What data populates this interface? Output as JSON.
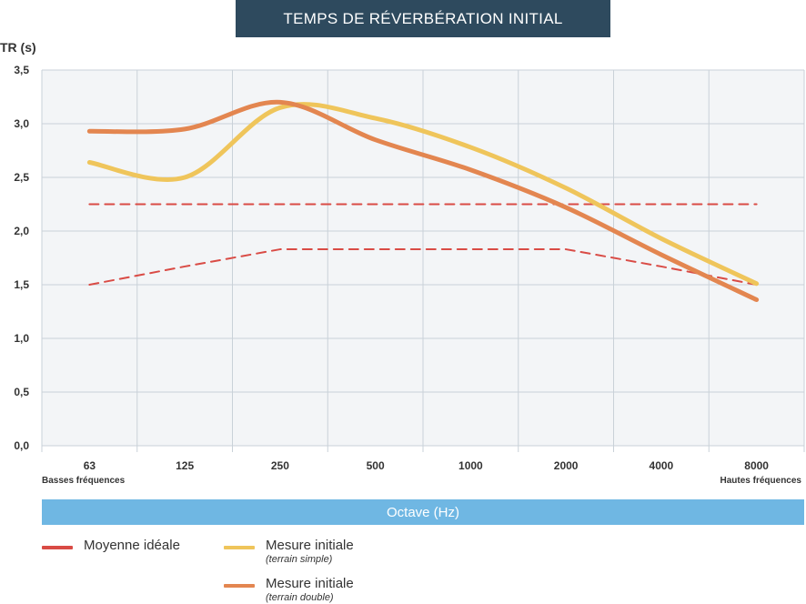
{
  "title": "TEMPS DE RÉVERBÉRATION INITIAL",
  "y_unit": "TR (s)",
  "x_axis_label": "Octave (Hz)",
  "low_note": "Basses fréquences",
  "high_note": "Hautes fréquences",
  "colors": {
    "title_bg": "#2e4a5e",
    "octave_bg": "#6fb7e3",
    "ideal": "#d94b45",
    "simple": "#efc55b",
    "double": "#e38650",
    "plot_bg": "#f3f5f7",
    "grid": "#c9d1d8"
  },
  "legend": {
    "ideal": {
      "label": "Moyenne idéale"
    },
    "simple": {
      "label": "Mesure initiale",
      "sub": "(terrain simple)"
    },
    "double": {
      "label": "Mesure initiale",
      "sub": "(terrain double)"
    }
  },
  "chart_data": {
    "type": "line",
    "categories": [
      "63",
      "125",
      "250",
      "500",
      "1000",
      "2000",
      "4000",
      "8000"
    ],
    "ylim": [
      0,
      3.5
    ],
    "yticks": [
      "0,0",
      "0,5",
      "1,0",
      "1,5",
      "2,0",
      "2,5",
      "3,0",
      "3,5"
    ],
    "grid": true,
    "legend_position": "bottom-left",
    "series": [
      {
        "key": "simple",
        "values": [
          2.64,
          2.5,
          3.15,
          3.05,
          2.78,
          2.4,
          1.93,
          1.51
        ]
      },
      {
        "key": "double",
        "values": [
          2.93,
          2.95,
          3.2,
          2.85,
          2.57,
          2.22,
          1.78,
          1.36
        ]
      },
      {
        "key": "ideal_upper",
        "values": [
          2.25,
          2.25,
          2.25,
          2.25,
          2.25,
          2.25,
          2.25,
          2.25
        ]
      },
      {
        "key": "ideal_lower",
        "values": [
          1.5,
          1.67,
          1.83,
          1.83,
          1.83,
          1.83,
          1.67,
          1.5
        ]
      }
    ]
  }
}
